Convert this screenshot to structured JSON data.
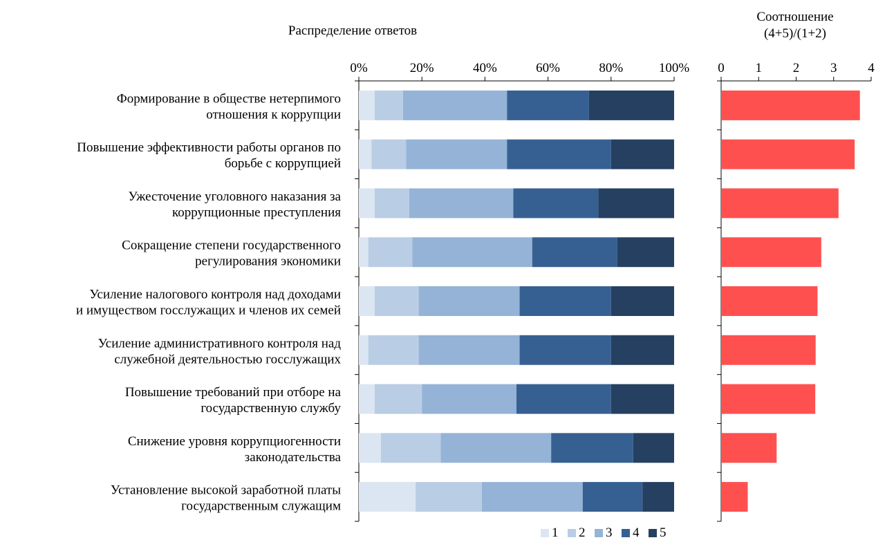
{
  "chart_data": [
    {
      "type": "bar",
      "orientation": "horizontal",
      "stacked": true,
      "title": "Распределение ответов",
      "categories": [
        [
          "Формирование в обществе нетерпимого",
          "отношения к коррупции"
        ],
        [
          "Повышение эффективности работы органов по",
          "борьбе с коррупцией"
        ],
        [
          "Ужесточение уголовного наказания за",
          "коррупционные преступления"
        ],
        [
          "Сокращение степени государственного",
          "регулирования экономики"
        ],
        [
          "Усиление налогового контроля над доходами",
          "и имуществом госслужащих и членов их семей"
        ],
        [
          "Усиление административного контроля над",
          "служебной деятельностью госслужащих"
        ],
        [
          "Повышение требований при отборе на",
          "государственную службу"
        ],
        [
          "Снижение уровня коррупциогенности",
          "законодательства"
        ],
        [
          "Установление высокой заработной платы",
          "государственным служащим"
        ]
      ],
      "series": [
        {
          "name": "1",
          "color": "#dce6f2",
          "values": [
            5,
            4,
            5,
            3,
            5,
            3,
            5,
            7,
            18
          ]
        },
        {
          "name": "2",
          "color": "#b9cde5",
          "values": [
            9,
            11,
            11,
            14,
            14,
            16,
            15,
            19,
            21
          ]
        },
        {
          "name": "3",
          "color": "#95b3d7",
          "values": [
            33,
            32,
            33,
            38,
            32,
            32,
            30,
            35,
            32
          ]
        },
        {
          "name": "4",
          "color": "#376092",
          "values": [
            26,
            33,
            27,
            27,
            29,
            29,
            30,
            26,
            19
          ]
        },
        {
          "name": "5",
          "color": "#254061",
          "values": [
            27,
            20,
            24,
            18,
            20,
            20,
            20,
            13,
            10
          ]
        }
      ],
      "xlim": [
        0,
        100
      ],
      "xticks": [
        "0%",
        "20%",
        "40%",
        "60%",
        "80%",
        "100%"
      ],
      "legend_position": "bottom-right",
      "grid": false
    },
    {
      "type": "bar",
      "orientation": "horizontal",
      "title_lines": [
        "Соотношение",
        "(4+5)/(1+2)"
      ],
      "values": [
        3.7,
        3.56,
        3.13,
        2.67,
        2.57,
        2.52,
        2.51,
        1.48,
        0.71
      ],
      "color": "#ff5050",
      "xlim": [
        0,
        4
      ],
      "xticks": [
        "0",
        "1",
        "2",
        "3",
        "4"
      ],
      "grid": false
    }
  ]
}
